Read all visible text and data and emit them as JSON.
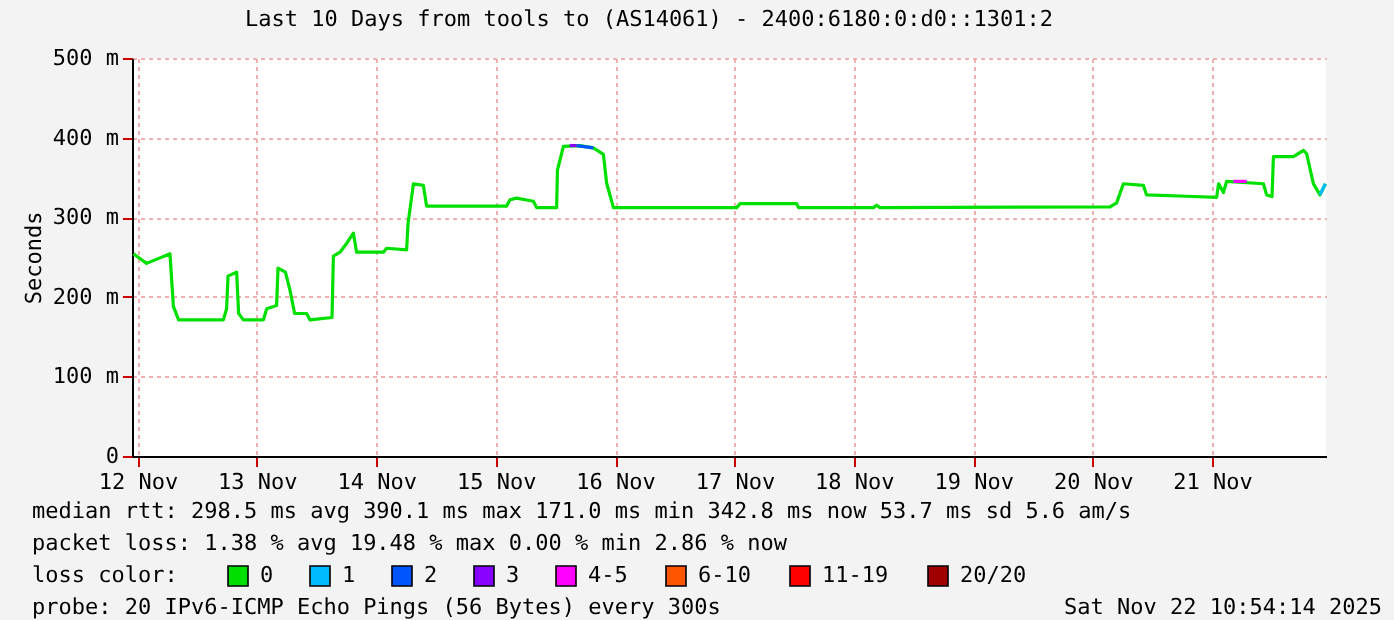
{
  "chart_data": {
    "type": "line",
    "title": "Last 10 Days from tools to (AS14061) - 2400:6180:0:d0::1301:2",
    "ylabel": "Seconds",
    "x": [
      "2025-11-12T11:11",
      "2025-11-12T13:50",
      "2025-11-12T18:32",
      "2025-11-12T19:13",
      "2025-11-12T20:16",
      "2025-11-13T05:16",
      "2025-11-13T05:55",
      "2025-11-13T06:12",
      "2025-11-13T07:56",
      "2025-11-13T08:20",
      "2025-11-13T09:17",
      "2025-11-13T13:19",
      "2025-11-13T13:58",
      "2025-11-13T15:58",
      "2025-11-13T16:15",
      "2025-11-13T17:44",
      "2025-11-13T18:40",
      "2025-11-13T19:35",
      "2025-11-13T22:00",
      "2025-11-13T22:41",
      "2025-11-14T03:06",
      "2025-11-14T03:23",
      "2025-11-14T04:43",
      "2025-11-14T06:02",
      "2025-11-14T07:24",
      "2025-11-14T08:03",
      "2025-11-14T13:26",
      "2025-11-14T14:05",
      "2025-11-14T18:06",
      "2025-11-14T18:23",
      "2025-11-14T19:28",
      "2025-11-14T21:28",
      "2025-11-14T22:07",
      "2025-11-15T14:12",
      "2025-11-15T14:53",
      "2025-11-15T16:13",
      "2025-11-15T19:35",
      "2025-11-15T20:14",
      "2025-11-16T00:15",
      "2025-11-16T00:25",
      "2025-11-16T01:37",
      "2025-11-16T04:57",
      "2025-11-16T07:38",
      "2025-11-16T09:39",
      "2025-11-16T10:18",
      "2025-11-16T11:40",
      "2025-11-17T12:26",
      "2025-11-17T13:07",
      "2025-11-18T00:29",
      "2025-11-18T00:53",
      "2025-11-18T15:56",
      "2025-11-18T16:34",
      "2025-11-18T17:15",
      "2025-11-20T15:29",
      "2025-11-20T16:49",
      "2025-11-20T18:11",
      "2025-11-20T22:12",
      "2025-11-20T22:50",
      "2025-11-21T08:15",
      "2025-11-21T12:55",
      "2025-11-21T13:19",
      "2025-11-21T14:17",
      "2025-11-21T14:55",
      "2025-11-21T22:19",
      "2025-11-21T22:58",
      "2025-11-22T00:03",
      "2025-11-22T00:20",
      "2025-11-22T04:21",
      "2025-11-22T06:22",
      "2025-11-22T07:00",
      "2025-11-22T08:22",
      "2025-11-22T09:41",
      "2025-11-22T10:47"
    ],
    "series": [
      {
        "name": "0",
        "color": "#00e000",
        "values": [
          254,
          242,
          254,
          188,
          171,
          171,
          185,
          226,
          231,
          179,
          171,
          171,
          185,
          189,
          236,
          231,
          208,
          179,
          179,
          171,
          174,
          251,
          256,
          267,
          280,
          256,
          256,
          261,
          259,
          292,
          342,
          340,
          314,
          314,
          322,
          324,
          320,
          312,
          312,
          359,
          389,
          390,
          387,
          379,
          343,
          312,
          312,
          317,
          317,
          312,
          312,
          315,
          312,
          313,
          318,
          342,
          340,
          328,
          326,
          325,
          342,
          331,
          345,
          342,
          328,
          326,
          376,
          376,
          384,
          380,
          342,
          328,
          342
        ]
      },
      {
        "name": "1",
        "color": "#00bbff",
        "x": [
          "2025-11-22T09:41",
          "2025-11-22T10:47"
        ],
        "values": [
          328,
          342
        ]
      },
      {
        "name": "2",
        "color": "#0055ff",
        "x": [
          "2025-11-16T04:15",
          "2025-11-16T07:38"
        ],
        "values": [
          390,
          387
        ]
      },
      {
        "name": "3",
        "color": "#8800ff",
        "x": [
          "2025-11-16T02:54",
          "2025-11-16T04:15"
        ],
        "values": [
          390,
          390
        ]
      },
      {
        "name": "4-5",
        "color": "#ff00ff",
        "x": [
          "2025-11-21T16:18",
          "2025-11-21T18:58"
        ],
        "values": [
          345,
          345
        ]
      },
      {
        "name": "6-10",
        "color": "#ff5500",
        "values": [
          null,
          null,
          null,
          null,
          null,
          null,
          null,
          null,
          null,
          null,
          null,
          null,
          null,
          null,
          null,
          null,
          null,
          null,
          null,
          null,
          null,
          null,
          null,
          null,
          null,
          null,
          null,
          null,
          null,
          null,
          null,
          null,
          null,
          null,
          null,
          null,
          null,
          null,
          null,
          null,
          null,
          null,
          null,
          null,
          null,
          null,
          null,
          null,
          null,
          null,
          null,
          null,
          null,
          null,
          null,
          null,
          null,
          null,
          null,
          null,
          null,
          null,
          null,
          null,
          null,
          null,
          null,
          null,
          null,
          null,
          null,
          null,
          null
        ]
      },
      {
        "name": "11-19",
        "color": "#ff0000",
        "values": [
          null,
          null,
          null,
          null,
          null,
          null,
          null,
          null,
          null,
          null,
          null,
          null,
          null,
          null,
          null,
          null,
          null,
          null,
          null,
          null,
          null,
          null,
          null,
          null,
          null,
          null,
          null,
          null,
          null,
          null,
          null,
          null,
          null,
          null,
          null,
          null,
          null,
          null,
          null,
          null,
          null,
          null,
          null,
          null,
          null,
          null,
          null,
          null,
          null,
          null,
          null,
          null,
          null,
          null,
          null,
          null,
          null,
          null,
          null,
          null,
          null,
          null,
          null,
          null,
          null,
          null,
          null,
          null,
          null,
          null,
          null,
          null,
          null
        ]
      },
      {
        "name": "20/20",
        "color": "#a10000",
        "values": [
          null,
          null,
          null,
          null,
          null,
          null,
          null,
          null,
          null,
          null,
          null,
          null,
          null,
          null,
          null,
          null,
          null,
          null,
          null,
          null,
          null,
          null,
          null,
          null,
          null,
          null,
          null,
          null,
          null,
          null,
          null,
          null,
          null,
          null,
          null,
          null,
          null,
          null,
          null,
          null,
          null,
          null,
          null,
          null,
          null,
          null,
          null,
          null,
          null,
          null,
          null,
          null,
          null,
          null,
          null,
          null,
          null,
          null,
          null,
          null,
          null,
          null,
          null,
          null,
          null,
          null,
          null,
          null,
          null,
          null,
          null,
          null,
          null
        ]
      }
    ],
    "legend_title": "loss color:",
    "legend": "bottom",
    "xlim": [
      "2025-11-12T10:54",
      "2025-11-22T10:54"
    ],
    "xticks": [
      {
        "value": "2025-11-12T12:00",
        "label": "12 Nov"
      },
      {
        "value": "2025-11-13T12:00",
        "label": "13 Nov"
      },
      {
        "value": "2025-11-14T12:00",
        "label": "14 Nov"
      },
      {
        "value": "2025-11-15T12:00",
        "label": "15 Nov"
      },
      {
        "value": "2025-11-16T12:00",
        "label": "16 Nov"
      },
      {
        "value": "2025-11-17T12:00",
        "label": "17 Nov"
      },
      {
        "value": "2025-11-18T12:00",
        "label": "18 Nov"
      },
      {
        "value": "2025-11-19T12:00",
        "label": "19 Nov"
      },
      {
        "value": "2025-11-20T12:00",
        "label": "20 Nov"
      },
      {
        "value": "2025-11-21T12:00",
        "label": "21 Nov"
      }
    ],
    "ylim": [
      0,
      500
    ],
    "yticks": [
      0,
      {
        "value": 100,
        "label": "100 m"
      },
      {
        "value": 200,
        "label": "200 m"
      },
      {
        "value": 300,
        "label": "300 m"
      },
      {
        "value": 400,
        "label": "400 m"
      },
      {
        "value": 500,
        "label": "500 m"
      }
    ],
    "grid": true,
    "marker": "none",
    "line_style": "solid",
    "annotations": [
      "median rtt:  298.5 ms avg  390.1 ms max  171.0 ms min  342.8 ms now  53.7 ms sd  5.6   am/s",
      "packet loss: 1.38 % avg  19.48 % max  0.00 % min  2.86 % now",
      "probe:       20 IPv6-ICMP Echo Pings (56 Bytes) every 300s",
      "Sat Nov 22 10:54:14 2025"
    ]
  }
}
